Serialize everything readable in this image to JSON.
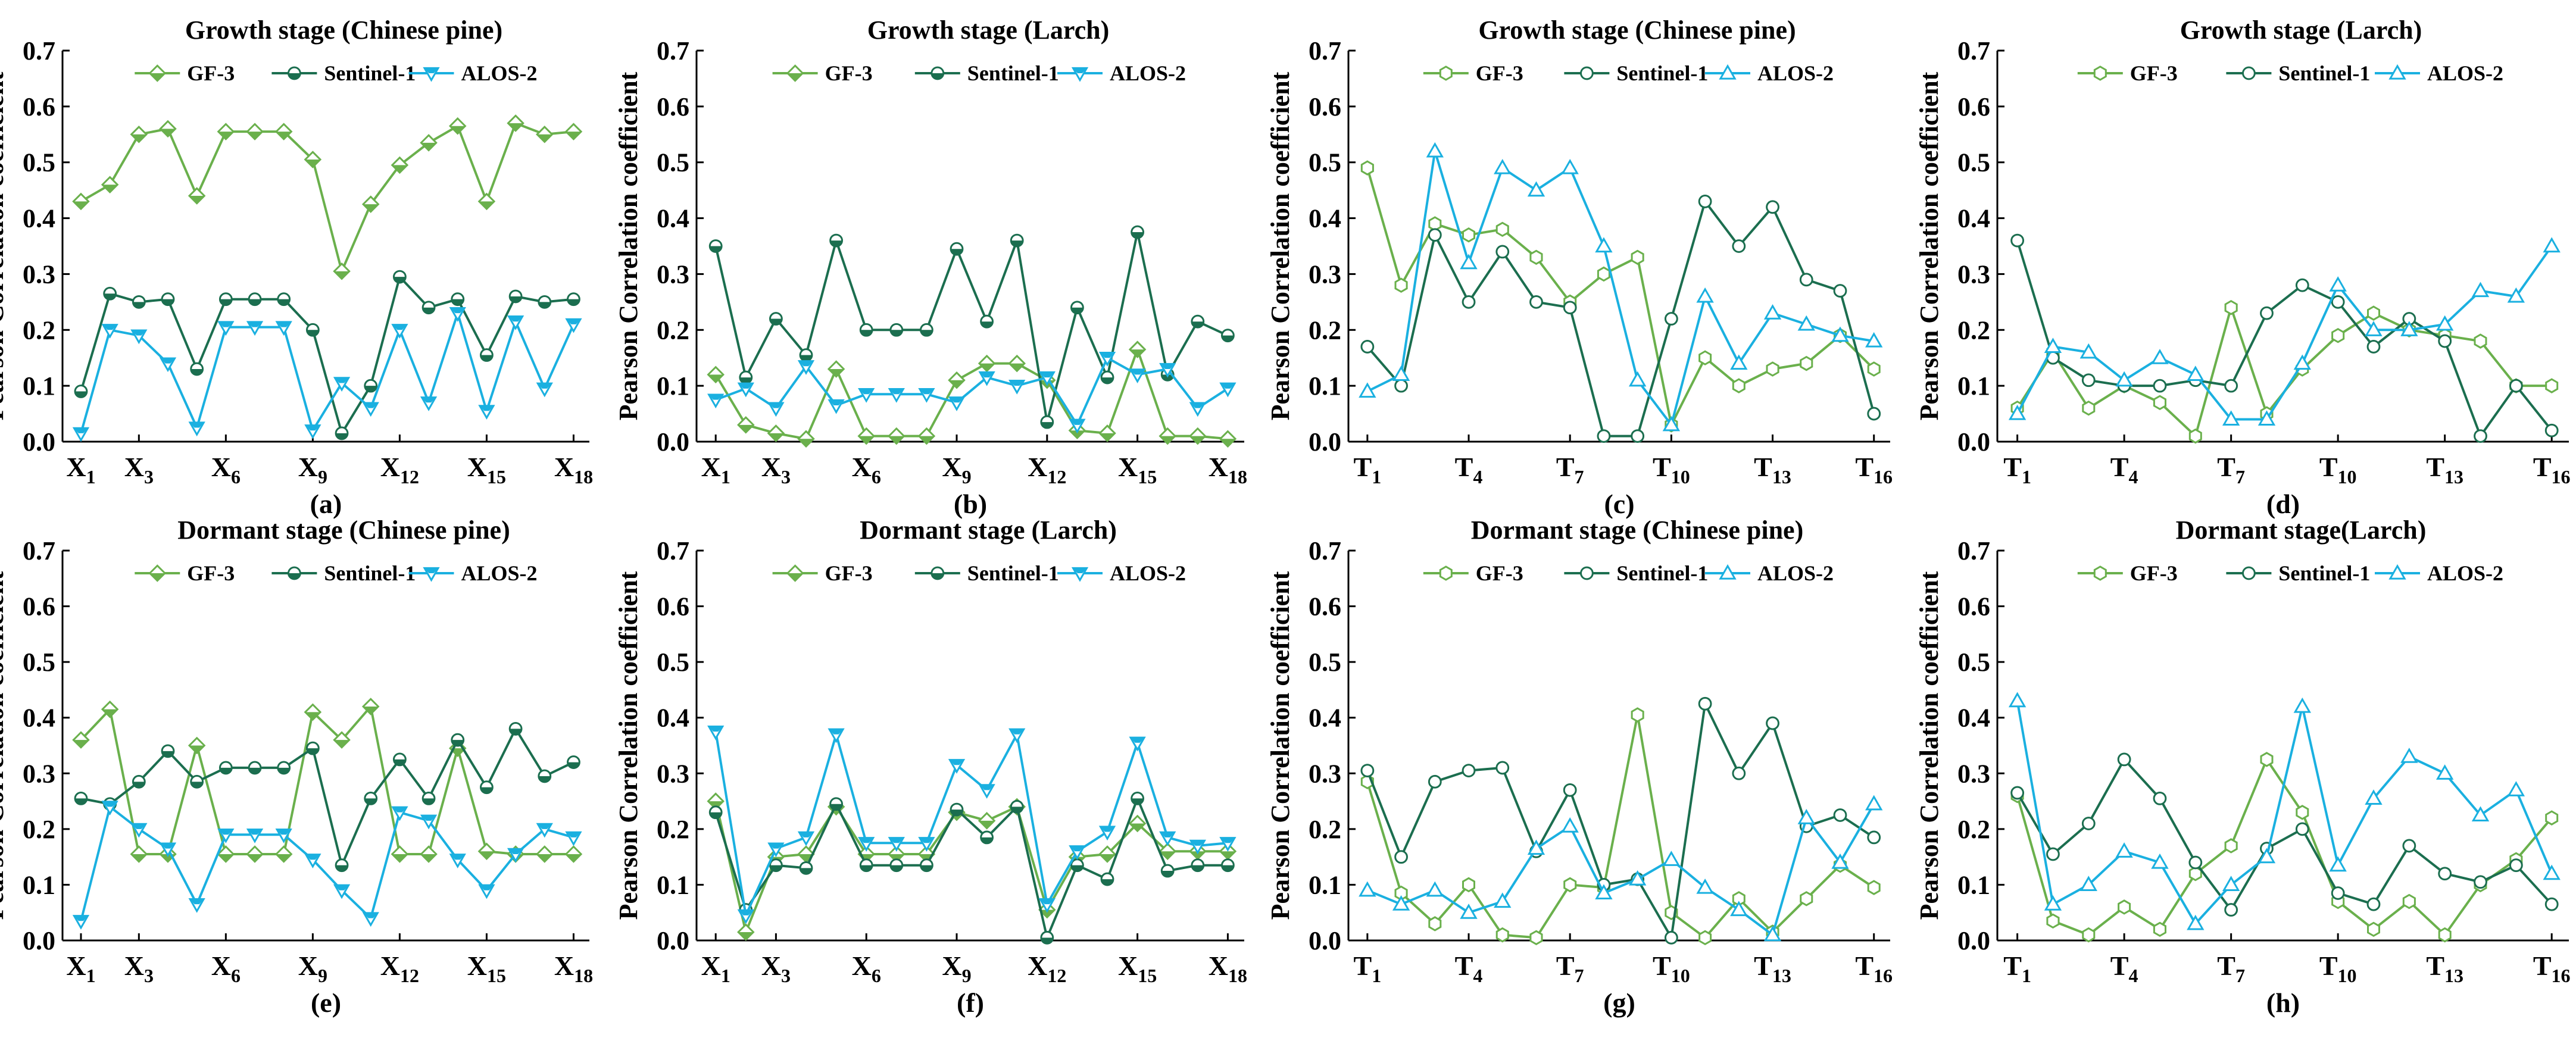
{
  "colors": {
    "GF-3": "#6ab04c",
    "Sentinel-1": "#1b6e4f",
    "ALOS-2": "#1ab0e0",
    "axis": "#000000"
  },
  "legend_labels": [
    "GF-3",
    "Sentinel-1",
    "ALOS-2"
  ],
  "ylabel": "Pearson Correlation coefficient",
  "chart_data": [
    {
      "type": "line",
      "panel_label": "(a)",
      "title": "Growth stage (Chinese pine)",
      "marker_style": "half-filled",
      "marker_shapes": {
        "GF-3": "diamond",
        "Sentinel-1": "circle",
        "ALOS-2": "triangle-down"
      },
      "ylim": [
        0,
        0.7
      ],
      "yticks": [
        "0.0",
        "0.1",
        "0.2",
        "0.3",
        "0.4",
        "0.5",
        "0.6",
        "0.7"
      ],
      "x_points": 18,
      "x_ticks": [
        {
          "i": 1,
          "base": "X",
          "sub": "1"
        },
        {
          "i": 3,
          "base": "X",
          "sub": "3"
        },
        {
          "i": 6,
          "base": "X",
          "sub": "6"
        },
        {
          "i": 9,
          "base": "X",
          "sub": "9"
        },
        {
          "i": 12,
          "base": "X",
          "sub": "12"
        },
        {
          "i": 15,
          "base": "X",
          "sub": "15"
        },
        {
          "i": 18,
          "base": "X",
          "sub": "18"
        }
      ],
      "series": [
        {
          "name": "GF-3",
          "values": [
            0.43,
            0.46,
            0.55,
            0.56,
            0.44,
            0.555,
            0.555,
            0.555,
            0.505,
            0.305,
            0.425,
            0.495,
            0.535,
            0.565,
            0.43,
            0.57,
            0.55,
            0.555
          ]
        },
        {
          "name": "Sentinel-1",
          "values": [
            0.09,
            0.265,
            0.25,
            0.255,
            0.13,
            0.255,
            0.255,
            0.255,
            0.2,
            0.015,
            0.1,
            0.295,
            0.24,
            0.255,
            0.155,
            0.26,
            0.25,
            0.255
          ]
        },
        {
          "name": "ALOS-2",
          "values": [
            0.015,
            0.2,
            0.19,
            0.14,
            0.025,
            0.205,
            0.205,
            0.205,
            0.02,
            0.105,
            0.06,
            0.2,
            0.07,
            0.23,
            0.055,
            0.215,
            0.095,
            0.21
          ]
        }
      ]
    },
    {
      "type": "line",
      "panel_label": "(b)",
      "title": "Growth stage (Larch)",
      "marker_style": "half-filled",
      "marker_shapes": {
        "GF-3": "diamond",
        "Sentinel-1": "circle",
        "ALOS-2": "triangle-down"
      },
      "ylim": [
        0,
        0.7
      ],
      "yticks": [
        "0.0",
        "0.1",
        "0.2",
        "0.3",
        "0.4",
        "0.5",
        "0.6",
        "0.7"
      ],
      "x_points": 18,
      "x_ticks": [
        {
          "i": 1,
          "base": "X",
          "sub": "1"
        },
        {
          "i": 3,
          "base": "X",
          "sub": "3"
        },
        {
          "i": 6,
          "base": "X",
          "sub": "6"
        },
        {
          "i": 9,
          "base": "X",
          "sub": "9"
        },
        {
          "i": 12,
          "base": "X",
          "sub": "12"
        },
        {
          "i": 15,
          "base": "X",
          "sub": "15"
        },
        {
          "i": 18,
          "base": "X",
          "sub": "18"
        }
      ],
      "series": [
        {
          "name": "GF-3",
          "values": [
            0.12,
            0.03,
            0.015,
            0.005,
            0.13,
            0.01,
            0.01,
            0.01,
            0.11,
            0.14,
            0.14,
            0.11,
            0.02,
            0.015,
            0.165,
            0.01,
            0.01,
            0.005
          ]
        },
        {
          "name": "Sentinel-1",
          "values": [
            0.35,
            0.115,
            0.22,
            0.155,
            0.36,
            0.2,
            0.2,
            0.2,
            0.345,
            0.215,
            0.36,
            0.035,
            0.24,
            0.115,
            0.375,
            0.12,
            0.215,
            0.19
          ]
        },
        {
          "name": "ALOS-2",
          "values": [
            0.075,
            0.095,
            0.06,
            0.135,
            0.065,
            0.085,
            0.085,
            0.085,
            0.07,
            0.115,
            0.1,
            0.115,
            0.03,
            0.15,
            0.12,
            0.13,
            0.06,
            0.095
          ]
        }
      ]
    },
    {
      "type": "line",
      "panel_label": "(c)",
      "title": "Growth stage (Chinese pine)",
      "marker_style": "hollow",
      "marker_shapes": {
        "GF-3": "hexagon",
        "Sentinel-1": "circle",
        "ALOS-2": "triangle-up"
      },
      "ylim": [
        0,
        0.7
      ],
      "yticks": [
        "0.0",
        "0.1",
        "0.2",
        "0.3",
        "0.4",
        "0.5",
        "0.6",
        "0.7"
      ],
      "x_points": 16,
      "x_ticks": [
        {
          "i": 1,
          "base": "T",
          "sub": "1"
        },
        {
          "i": 4,
          "base": "T",
          "sub": "4"
        },
        {
          "i": 7,
          "base": "T",
          "sub": "7"
        },
        {
          "i": 10,
          "base": "T",
          "sub": "10"
        },
        {
          "i": 13,
          "base": "T",
          "sub": "13"
        },
        {
          "i": 16,
          "base": "T",
          "sub": "16"
        }
      ],
      "series": [
        {
          "name": "GF-3",
          "values": [
            0.49,
            0.28,
            0.39,
            0.37,
            0.38,
            0.33,
            0.25,
            0.3,
            0.33,
            0.03,
            0.15,
            0.1,
            0.13,
            0.14,
            0.19,
            0.13
          ]
        },
        {
          "name": "Sentinel-1",
          "values": [
            0.17,
            0.1,
            0.37,
            0.25,
            0.34,
            0.25,
            0.24,
            0.01,
            0.01,
            0.22,
            0.43,
            0.35,
            0.42,
            0.29,
            0.27,
            0.05
          ]
        },
        {
          "name": "ALOS-2",
          "values": [
            0.09,
            0.12,
            0.52,
            0.32,
            0.49,
            0.45,
            0.49,
            0.35,
            0.11,
            0.03,
            0.26,
            0.14,
            0.23,
            0.21,
            0.19,
            0.18
          ]
        }
      ]
    },
    {
      "type": "line",
      "panel_label": "(d)",
      "title": "Growth stage (Larch)",
      "marker_style": "hollow",
      "marker_shapes": {
        "GF-3": "hexagon",
        "Sentinel-1": "circle",
        "ALOS-2": "triangle-up"
      },
      "ylim": [
        0,
        0.7
      ],
      "yticks": [
        "0.0",
        "0.1",
        "0.2",
        "0.3",
        "0.4",
        "0.5",
        "0.6",
        "0.7"
      ],
      "x_points": 16,
      "x_ticks": [
        {
          "i": 1,
          "base": "T",
          "sub": "1"
        },
        {
          "i": 4,
          "base": "T",
          "sub": "4"
        },
        {
          "i": 7,
          "base": "T",
          "sub": "7"
        },
        {
          "i": 10,
          "base": "T",
          "sub": "10"
        },
        {
          "i": 13,
          "base": "T",
          "sub": "13"
        },
        {
          "i": 16,
          "base": "T",
          "sub": "16"
        }
      ],
      "series": [
        {
          "name": "GF-3",
          "values": [
            0.06,
            0.16,
            0.06,
            0.1,
            0.07,
            0.01,
            0.24,
            0.05,
            0.13,
            0.19,
            0.23,
            0.2,
            0.19,
            0.18,
            0.1,
            0.1
          ]
        },
        {
          "name": "Sentinel-1",
          "values": [
            0.36,
            0.15,
            0.11,
            0.1,
            0.1,
            0.11,
            0.1,
            0.23,
            0.28,
            0.25,
            0.17,
            0.22,
            0.18,
            0.01,
            0.1,
            0.02
          ]
        },
        {
          "name": "ALOS-2",
          "values": [
            0.05,
            0.17,
            0.16,
            0.11,
            0.15,
            0.12,
            0.04,
            0.04,
            0.14,
            0.28,
            0.2,
            0.2,
            0.21,
            0.27,
            0.26,
            0.35
          ]
        }
      ]
    },
    {
      "type": "line",
      "panel_label": "(e)",
      "title": "Dormant stage (Chinese pine)",
      "marker_style": "half-filled",
      "marker_shapes": {
        "GF-3": "diamond",
        "Sentinel-1": "circle",
        "ALOS-2": "triangle-down"
      },
      "ylim": [
        0,
        0.7
      ],
      "yticks": [
        "0.0",
        "0.1",
        "0.2",
        "0.3",
        "0.4",
        "0.5",
        "0.6",
        "0.7"
      ],
      "x_points": 18,
      "x_ticks": [
        {
          "i": 1,
          "base": "X",
          "sub": "1"
        },
        {
          "i": 3,
          "base": "X",
          "sub": "3"
        },
        {
          "i": 6,
          "base": "X",
          "sub": "6"
        },
        {
          "i": 9,
          "base": "X",
          "sub": "9"
        },
        {
          "i": 12,
          "base": "X",
          "sub": "12"
        },
        {
          "i": 15,
          "base": "X",
          "sub": "15"
        },
        {
          "i": 18,
          "base": "X",
          "sub": "18"
        }
      ],
      "series": [
        {
          "name": "GF-3",
          "values": [
            0.36,
            0.415,
            0.155,
            0.155,
            0.35,
            0.155,
            0.155,
            0.155,
            0.41,
            0.36,
            0.42,
            0.155,
            0.155,
            0.345,
            0.16,
            0.155,
            0.155,
            0.155
          ]
        },
        {
          "name": "Sentinel-1",
          "values": [
            0.255,
            0.245,
            0.285,
            0.34,
            0.285,
            0.31,
            0.31,
            0.31,
            0.345,
            0.135,
            0.255,
            0.325,
            0.255,
            0.36,
            0.275,
            0.38,
            0.295,
            0.32
          ]
        },
        {
          "name": "ALOS-2",
          "values": [
            0.035,
            0.24,
            0.2,
            0.165,
            0.065,
            0.19,
            0.19,
            0.19,
            0.145,
            0.09,
            0.04,
            0.23,
            0.215,
            0.145,
            0.09,
            0.155,
            0.2,
            0.185
          ]
        }
      ]
    },
    {
      "type": "line",
      "panel_label": "(f)",
      "title": "Dormant stage (Larch)",
      "marker_style": "half-filled",
      "marker_shapes": {
        "GF-3": "diamond",
        "Sentinel-1": "circle",
        "ALOS-2": "triangle-down"
      },
      "ylim": [
        0,
        0.7
      ],
      "yticks": [
        "0.0",
        "0.1",
        "0.2",
        "0.3",
        "0.4",
        "0.5",
        "0.6",
        "0.7"
      ],
      "x_points": 18,
      "x_ticks": [
        {
          "i": 1,
          "base": "X",
          "sub": "1"
        },
        {
          "i": 3,
          "base": "X",
          "sub": "3"
        },
        {
          "i": 6,
          "base": "X",
          "sub": "6"
        },
        {
          "i": 9,
          "base": "X",
          "sub": "9"
        },
        {
          "i": 12,
          "base": "X",
          "sub": "12"
        },
        {
          "i": 15,
          "base": "X",
          "sub": "15"
        },
        {
          "i": 18,
          "base": "X",
          "sub": "18"
        }
      ],
      "series": [
        {
          "name": "GF-3",
          "values": [
            0.25,
            0.015,
            0.15,
            0.155,
            0.24,
            0.155,
            0.155,
            0.155,
            0.23,
            0.215,
            0.24,
            0.055,
            0.15,
            0.155,
            0.21,
            0.16,
            0.16,
            0.16
          ]
        },
        {
          "name": "Sentinel-1",
          "values": [
            0.23,
            0.055,
            0.135,
            0.13,
            0.245,
            0.135,
            0.135,
            0.135,
            0.235,
            0.185,
            0.24,
            0.005,
            0.135,
            0.11,
            0.255,
            0.125,
            0.135,
            0.135
          ]
        },
        {
          "name": "ALOS-2",
          "values": [
            0.375,
            0.045,
            0.165,
            0.185,
            0.37,
            0.175,
            0.175,
            0.175,
            0.315,
            0.27,
            0.37,
            0.065,
            0.16,
            0.195,
            0.355,
            0.185,
            0.17,
            0.175
          ]
        }
      ]
    },
    {
      "type": "line",
      "panel_label": "(g)",
      "title": "Dormant stage (Chinese pine)",
      "marker_style": "hollow",
      "marker_shapes": {
        "GF-3": "hexagon",
        "Sentinel-1": "circle",
        "ALOS-2": "triangle-up"
      },
      "ylim": [
        0,
        0.7
      ],
      "yticks": [
        "0.0",
        "0.1",
        "0.2",
        "0.3",
        "0.4",
        "0.5",
        "0.6",
        "0.7"
      ],
      "x_points": 16,
      "x_ticks": [
        {
          "i": 1,
          "base": "T",
          "sub": "1"
        },
        {
          "i": 4,
          "base": "T",
          "sub": "4"
        },
        {
          "i": 7,
          "base": "T",
          "sub": "7"
        },
        {
          "i": 10,
          "base": "T",
          "sub": "10"
        },
        {
          "i": 13,
          "base": "T",
          "sub": "13"
        },
        {
          "i": 16,
          "base": "T",
          "sub": "16"
        }
      ],
      "series": [
        {
          "name": "GF-3",
          "values": [
            0.285,
            0.085,
            0.03,
            0.1,
            0.01,
            0.005,
            0.1,
            0.095,
            0.405,
            0.05,
            0.005,
            0.075,
            0.015,
            0.075,
            0.135,
            0.095
          ]
        },
        {
          "name": "Sentinel-1",
          "values": [
            0.305,
            0.15,
            0.285,
            0.305,
            0.31,
            0.16,
            0.27,
            0.1,
            0.11,
            0.005,
            0.425,
            0.3,
            0.39,
            0.205,
            0.225,
            0.185
          ]
        },
        {
          "name": "ALOS-2",
          "values": [
            0.09,
            0.065,
            0.09,
            0.05,
            0.07,
            0.165,
            0.205,
            0.085,
            0.11,
            0.145,
            0.095,
            0.055,
            0.01,
            0.22,
            0.14,
            0.245
          ]
        }
      ]
    },
    {
      "type": "line",
      "panel_label": "(h)",
      "title": "Dormant stage(Larch)",
      "marker_style": "hollow",
      "marker_shapes": {
        "GF-3": "hexagon",
        "Sentinel-1": "circle",
        "ALOS-2": "triangle-up"
      },
      "ylim": [
        0,
        0.7
      ],
      "yticks": [
        "0.0",
        "0.1",
        "0.2",
        "0.3",
        "0.4",
        "0.5",
        "0.6",
        "0.7"
      ],
      "x_points": 16,
      "x_ticks": [
        {
          "i": 1,
          "base": "T",
          "sub": "1"
        },
        {
          "i": 4,
          "base": "T",
          "sub": "4"
        },
        {
          "i": 7,
          "base": "T",
          "sub": "7"
        },
        {
          "i": 10,
          "base": "T",
          "sub": "10"
        },
        {
          "i": 13,
          "base": "T",
          "sub": "13"
        },
        {
          "i": 16,
          "base": "T",
          "sub": "16"
        }
      ],
      "series": [
        {
          "name": "GF-3",
          "values": [
            0.26,
            0.035,
            0.01,
            0.06,
            0.02,
            0.12,
            0.17,
            0.325,
            0.23,
            0.07,
            0.02,
            0.07,
            0.01,
            0.1,
            0.145,
            0.22
          ]
        },
        {
          "name": "Sentinel-1",
          "values": [
            0.265,
            0.155,
            0.21,
            0.325,
            0.255,
            0.14,
            0.055,
            0.165,
            0.2,
            0.085,
            0.065,
            0.17,
            0.12,
            0.105,
            0.135,
            0.065
          ]
        },
        {
          "name": "ALOS-2",
          "values": [
            0.43,
            0.065,
            0.1,
            0.16,
            0.14,
            0.03,
            0.1,
            0.15,
            0.42,
            0.135,
            0.255,
            0.33,
            0.3,
            0.225,
            0.27,
            0.12
          ]
        }
      ]
    }
  ]
}
